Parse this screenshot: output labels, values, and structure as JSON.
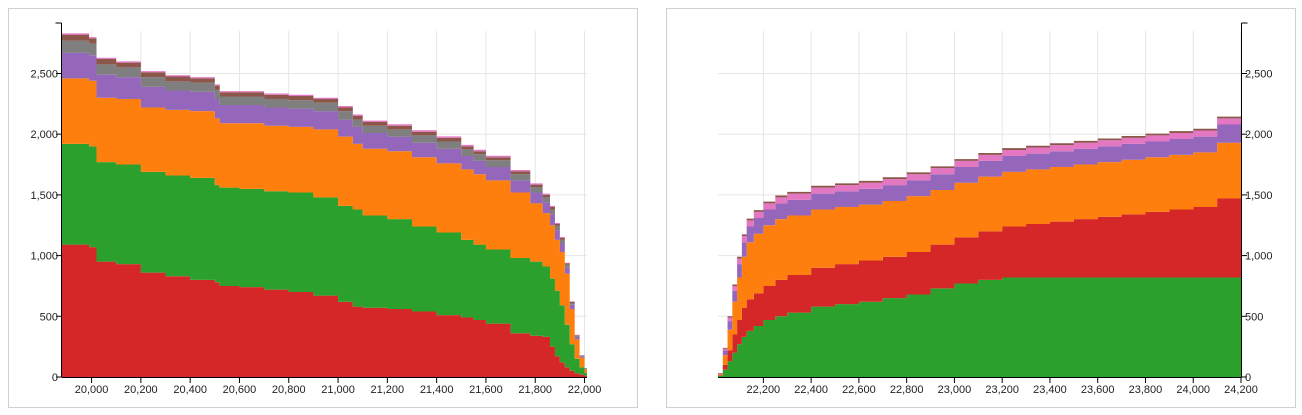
{
  "colors": {
    "red": "#d62728",
    "green": "#2ca02c",
    "orange": "#ff7f0e",
    "purple": "#9467bd",
    "gray": "#7f7f7f",
    "brown": "#8c564b",
    "pink": "#e377c2"
  },
  "chart_data": [
    {
      "type": "area",
      "step": true,
      "stacked": true,
      "title": "",
      "xlabel": "",
      "ylabel": "",
      "xlim": [
        19880,
        22010
      ],
      "ylim": [
        0,
        2850
      ],
      "grid": true,
      "y_axis_position": "left",
      "xticks": [
        "20,000",
        "20,200",
        "20,400",
        "20,600",
        "20,800",
        "21,000",
        "21,200",
        "21,400",
        "21,600",
        "21,800",
        "22,000"
      ],
      "xtick_values": [
        20000,
        20200,
        20400,
        20600,
        20800,
        21000,
        21200,
        21400,
        21600,
        21800,
        22000
      ],
      "yticks": [
        "0",
        "500",
        "1,000",
        "1,500",
        "2,000",
        "2,500"
      ],
      "ytick_values": [
        0,
        500,
        1000,
        1500,
        2000,
        2500
      ],
      "x": [
        19880,
        19990,
        20020,
        20100,
        20200,
        20300,
        20400,
        20500,
        20520,
        20600,
        20700,
        20800,
        20900,
        21000,
        21060,
        21100,
        21200,
        21300,
        21400,
        21500,
        21550,
        21600,
        21700,
        21780,
        21830,
        21860,
        21880,
        21900,
        21920,
        21940,
        21960,
        21980,
        22000,
        22010
      ],
      "series": [
        {
          "color": "red",
          "values": [
            1090,
            1070,
            950,
            930,
            860,
            830,
            800,
            780,
            750,
            740,
            720,
            700,
            670,
            620,
            580,
            570,
            560,
            540,
            510,
            490,
            470,
            440,
            360,
            340,
            330,
            250,
            170,
            120,
            80,
            50,
            30,
            20,
            10,
            5
          ]
        },
        {
          "color": "green",
          "values": [
            830,
            830,
            820,
            820,
            830,
            830,
            840,
            800,
            810,
            810,
            810,
            820,
            810,
            790,
            800,
            760,
            740,
            700,
            680,
            640,
            620,
            610,
            620,
            610,
            580,
            560,
            540,
            470,
            350,
            220,
            120,
            60,
            25,
            10
          ]
        },
        {
          "color": "orange",
          "values": [
            540,
            540,
            530,
            540,
            530,
            540,
            550,
            550,
            530,
            540,
            540,
            540,
            560,
            570,
            540,
            550,
            560,
            570,
            570,
            580,
            580,
            570,
            540,
            480,
            440,
            440,
            420,
            440,
            420,
            290,
            160,
            80,
            30,
            12
          ]
        },
        {
          "color": "purple",
          "values": [
            210,
            210,
            190,
            180,
            170,
            160,
            160,
            160,
            150,
            150,
            150,
            150,
            150,
            140,
            140,
            130,
            120,
            120,
            120,
            110,
            110,
            110,
            100,
            90,
            90,
            90,
            80,
            70,
            50,
            35,
            20,
            10,
            5,
            2
          ]
        },
        {
          "color": "gray",
          "values": [
            100,
            95,
            85,
            80,
            80,
            75,
            75,
            75,
            70,
            70,
            70,
            70,
            70,
            70,
            60,
            60,
            60,
            60,
            60,
            55,
            55,
            55,
            50,
            45,
            40,
            40,
            35,
            30,
            25,
            15,
            10,
            5,
            2,
            1
          ]
        },
        {
          "color": "brown",
          "values": [
            50,
            45,
            45,
            40,
            40,
            40,
            35,
            35,
            35,
            35,
            35,
            35,
            30,
            30,
            30,
            30,
            30,
            30,
            30,
            25,
            25,
            25,
            25,
            20,
            20,
            20,
            15,
            15,
            10,
            8,
            5,
            3,
            1,
            1
          ]
        },
        {
          "color": "pink",
          "values": [
            10,
            10,
            10,
            10,
            10,
            10,
            10,
            10,
            10,
            10,
            10,
            10,
            10,
            12,
            12,
            12,
            12,
            12,
            12,
            12,
            12,
            12,
            10,
            10,
            10,
            10,
            8,
            8,
            6,
            5,
            3,
            2,
            1,
            0
          ]
        }
      ]
    },
    {
      "type": "area",
      "step": true,
      "stacked": true,
      "title": "",
      "xlabel": "",
      "ylabel": "",
      "xlim": [
        22010,
        24200
      ],
      "ylim": [
        0,
        2850
      ],
      "grid": true,
      "y_axis_position": "right",
      "xticks": [
        "22,200",
        "22,400",
        "22,600",
        "22,800",
        "23,000",
        "23,200",
        "23,400",
        "23,600",
        "23,800",
        "24,000",
        "24,200"
      ],
      "xtick_values": [
        22200,
        22400,
        22600,
        22800,
        23000,
        23200,
        23400,
        23600,
        23800,
        24000,
        24200
      ],
      "yticks": [
        "0",
        "500",
        "1,000",
        "1,500",
        "2,000",
        "2,500"
      ],
      "ytick_values": [
        0,
        500,
        1000,
        1500,
        2000,
        2500
      ],
      "x": [
        22010,
        22030,
        22050,
        22070,
        22090,
        22110,
        22130,
        22160,
        22200,
        22250,
        22300,
        22400,
        22500,
        22600,
        22700,
        22800,
        22900,
        23000,
        23100,
        23200,
        23300,
        23400,
        23500,
        23600,
        23700,
        23800,
        23900,
        24000,
        24100,
        24200
      ],
      "series": [
        {
          "color": "green",
          "values": [
            10,
            60,
            130,
            200,
            270,
            330,
            380,
            420,
            470,
            500,
            530,
            580,
            600,
            620,
            650,
            680,
            730,
            770,
            800,
            820,
            820,
            820,
            820,
            820,
            820,
            820,
            820,
            820,
            820,
            820
          ]
        },
        {
          "color": "red",
          "values": [
            5,
            40,
            90,
            150,
            200,
            240,
            260,
            270,
            280,
            300,
            310,
            320,
            330,
            340,
            340,
            350,
            360,
            380,
            400,
            420,
            440,
            460,
            480,
            500,
            520,
            540,
            560,
            580,
            650,
            720
          ]
        },
        {
          "color": "orange",
          "values": [
            10,
            80,
            170,
            270,
            350,
            420,
            470,
            490,
            500,
            500,
            490,
            480,
            470,
            460,
            460,
            460,
            450,
            450,
            450,
            450,
            450,
            450,
            450,
            450,
            450,
            450,
            450,
            450,
            460,
            460
          ]
        },
        {
          "color": "purple",
          "values": [
            5,
            40,
            70,
            90,
            110,
            120,
            130,
            130,
            130,
            130,
            130,
            130,
            130,
            130,
            130,
            130,
            130,
            130,
            130,
            130,
            130,
            130,
            130,
            130,
            130,
            130,
            130,
            130,
            150,
            160
          ]
        },
        {
          "color": "pink",
          "values": [
            2,
            15,
            30,
            40,
            45,
            50,
            50,
            50,
            50,
            50,
            50,
            50,
            50,
            50,
            50,
            50,
            50,
            50,
            50,
            50,
            50,
            50,
            50,
            50,
            50,
            50,
            50,
            50,
            50,
            50
          ]
        },
        {
          "color": "brown",
          "values": [
            1,
            5,
            10,
            12,
            15,
            15,
            15,
            15,
            15,
            15,
            15,
            15,
            15,
            15,
            15,
            15,
            15,
            15,
            15,
            15,
            15,
            15,
            15,
            15,
            15,
            15,
            15,
            15,
            15,
            15
          ]
        }
      ]
    }
  ]
}
